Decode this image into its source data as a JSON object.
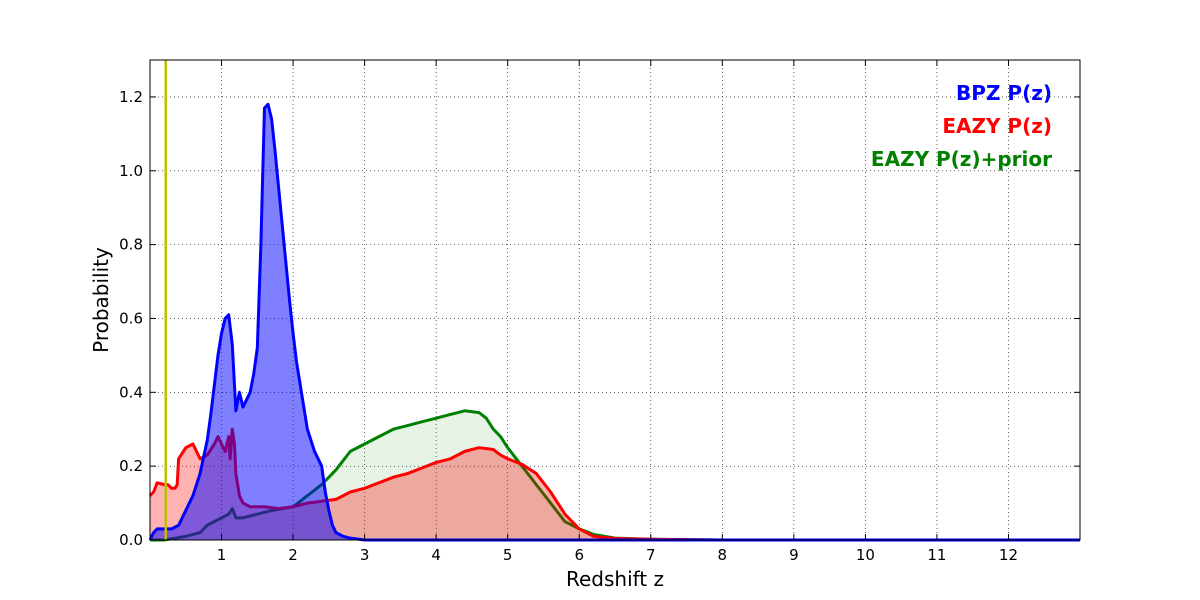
{
  "chart_data": {
    "type": "area",
    "title": "",
    "xlabel": "Redshift z",
    "ylabel": "Probability",
    "xlim": [
      0,
      13
    ],
    "ylim": [
      0,
      1.3
    ],
    "grid": true,
    "legend_position": "top-right",
    "xticks": [
      "1",
      "2",
      "3",
      "4",
      "5",
      "6",
      "7",
      "8",
      "9",
      "10",
      "11",
      "12"
    ],
    "yticks": [
      "0.0",
      "0.2",
      "0.4",
      "0.6",
      "0.8",
      "1.0",
      "1.2"
    ],
    "vertical_line": {
      "x": 0.22,
      "color": "#bfbf00"
    },
    "colors": {
      "bpz": "#0000ff",
      "eazy": "#ff0000",
      "eazy_prior": "#008000"
    },
    "series": [
      {
        "name": "EAZY P(z)+prior",
        "color": "#008000",
        "fill_opacity": 0.1,
        "x": [
          0.0,
          0.2,
          0.5,
          0.7,
          0.8,
          0.9,
          1.0,
          1.1,
          1.15,
          1.2,
          1.3,
          1.5,
          1.7,
          2.0,
          2.2,
          2.4,
          2.6,
          2.8,
          3.0,
          3.2,
          3.4,
          3.6,
          3.7,
          3.8,
          4.0,
          4.2,
          4.4,
          4.6,
          4.7,
          4.8,
          4.9,
          5.0,
          5.2,
          5.4,
          5.6,
          5.8,
          6.0,
          6.2,
          6.5,
          7.0,
          8.0,
          10.0,
          12.0,
          13.0
        ],
        "y": [
          0.0,
          0.0,
          0.01,
          0.02,
          0.04,
          0.05,
          0.06,
          0.07,
          0.085,
          0.06,
          0.06,
          0.07,
          0.08,
          0.09,
          0.12,
          0.15,
          0.19,
          0.24,
          0.26,
          0.28,
          0.3,
          0.31,
          0.315,
          0.32,
          0.33,
          0.34,
          0.35,
          0.345,
          0.33,
          0.3,
          0.28,
          0.25,
          0.2,
          0.15,
          0.1,
          0.05,
          0.03,
          0.015,
          0.005,
          0.002,
          0.0,
          0.0,
          0.0,
          0.0
        ]
      },
      {
        "name": "EAZY P(z)",
        "color": "#ff0000",
        "fill_opacity": 0.3,
        "x": [
          0.0,
          0.05,
          0.1,
          0.2,
          0.25,
          0.3,
          0.35,
          0.38,
          0.4,
          0.5,
          0.6,
          0.7,
          0.8,
          0.9,
          0.95,
          1.0,
          1.05,
          1.1,
          1.12,
          1.15,
          1.18,
          1.2,
          1.25,
          1.3,
          1.4,
          1.6,
          1.8,
          2.0,
          2.2,
          2.4,
          2.6,
          2.8,
          3.0,
          3.2,
          3.4,
          3.6,
          3.8,
          4.0,
          4.2,
          4.4,
          4.6,
          4.8,
          4.9,
          5.0,
          5.2,
          5.4,
          5.6,
          5.8,
          6.0,
          6.2,
          6.5,
          7.0,
          8.0,
          10.0,
          12.0,
          13.0
        ],
        "y": [
          0.12,
          0.13,
          0.155,
          0.15,
          0.15,
          0.14,
          0.14,
          0.15,
          0.22,
          0.25,
          0.26,
          0.22,
          0.23,
          0.26,
          0.28,
          0.26,
          0.24,
          0.28,
          0.22,
          0.3,
          0.26,
          0.18,
          0.12,
          0.1,
          0.09,
          0.09,
          0.085,
          0.09,
          0.1,
          0.105,
          0.11,
          0.13,
          0.14,
          0.155,
          0.17,
          0.18,
          0.195,
          0.21,
          0.22,
          0.24,
          0.25,
          0.245,
          0.23,
          0.22,
          0.205,
          0.18,
          0.13,
          0.07,
          0.03,
          0.01,
          0.004,
          0.002,
          0.0,
          0.0,
          0.0,
          0.0
        ]
      },
      {
        "name": "BPZ P(z)",
        "color": "#0000ff",
        "fill_opacity": 0.5,
        "x": [
          0.0,
          0.05,
          0.1,
          0.2,
          0.3,
          0.4,
          0.5,
          0.6,
          0.7,
          0.8,
          0.85,
          0.9,
          0.95,
          1.0,
          1.05,
          1.1,
          1.15,
          1.2,
          1.25,
          1.3,
          1.35,
          1.4,
          1.45,
          1.5,
          1.55,
          1.6,
          1.65,
          1.7,
          1.75,
          1.8,
          1.85,
          1.9,
          1.95,
          2.0,
          2.05,
          2.1,
          2.15,
          2.2,
          2.25,
          2.3,
          2.35,
          2.4,
          2.45,
          2.5,
          2.55,
          2.6,
          2.7,
          2.8,
          3.0,
          4.0,
          6.0,
          8.0,
          10.0,
          12.0,
          13.0
        ],
        "y": [
          0.0,
          0.02,
          0.03,
          0.03,
          0.03,
          0.04,
          0.08,
          0.12,
          0.18,
          0.27,
          0.34,
          0.42,
          0.5,
          0.56,
          0.6,
          0.61,
          0.53,
          0.35,
          0.4,
          0.36,
          0.38,
          0.4,
          0.45,
          0.52,
          0.8,
          1.17,
          1.18,
          1.14,
          1.05,
          0.95,
          0.85,
          0.75,
          0.65,
          0.56,
          0.48,
          0.42,
          0.36,
          0.3,
          0.27,
          0.24,
          0.22,
          0.2,
          0.13,
          0.08,
          0.04,
          0.02,
          0.01,
          0.005,
          0.0,
          0.0,
          0.0,
          0.0,
          0.0,
          0.0,
          0.0
        ]
      }
    ],
    "legend": [
      {
        "label": "BPZ P(z)",
        "color": "#0000ff"
      },
      {
        "label": "EAZY P(z)",
        "color": "#ff0000"
      },
      {
        "label": "EAZY P(z)+prior",
        "color": "#008000"
      }
    ]
  }
}
